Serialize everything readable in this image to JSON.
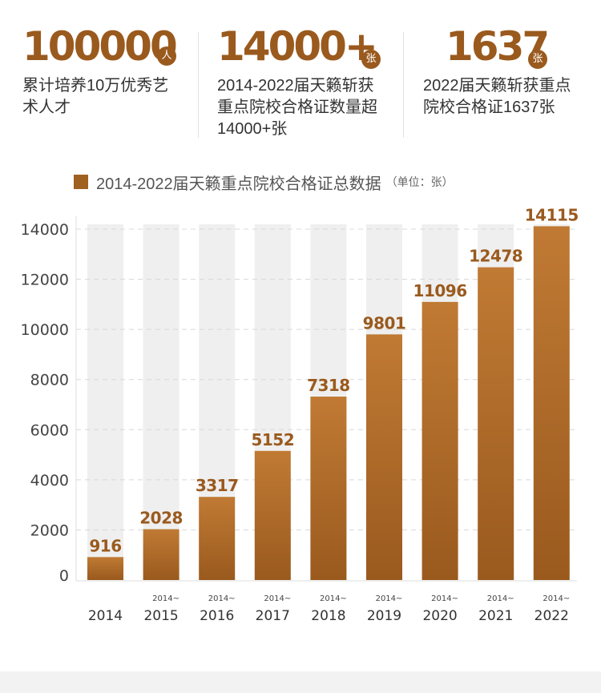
{
  "stats": [
    {
      "value": "100000",
      "badge": "人",
      "desc_lines": [
        "累计培养10万优秀艺",
        "术人才"
      ]
    },
    {
      "value": "14000+",
      "badge": "张",
      "desc_lines": [
        "2014-2022届天籁斩获",
        "重点院校合格证数量超",
        "14000+张"
      ]
    },
    {
      "value": "1637",
      "badge": "张",
      "desc_lines": [
        "2022届天籁斩获重点",
        "院校合格证1637张"
      ]
    }
  ],
  "colors": {
    "accent": "#9a5a1e",
    "bar_top": "#c07a34",
    "bar_bottom": "#9a5a1e",
    "bar_bg": "#efefef"
  },
  "chart_data": {
    "type": "bar",
    "title": "2014-2022届天籁重点院校合格证总数据",
    "unit_note": "（单位：张）",
    "categories": [
      "2014",
      "2015",
      "2016",
      "2017",
      "2018",
      "2019",
      "2020",
      "2021",
      "2022"
    ],
    "category_prefixes": [
      "",
      "2014~",
      "2014~",
      "2014~",
      "2014~",
      "2014~",
      "2014~",
      "2014~",
      "2014~"
    ],
    "values": [
      916,
      2028,
      3317,
      5152,
      7318,
      9801,
      11096,
      12478,
      14115
    ],
    "yticks": [
      0,
      2000,
      4000,
      6000,
      8000,
      10000,
      12000,
      14000
    ],
    "ylim": [
      0,
      14000
    ],
    "grid": true,
    "legend": "top-left"
  }
}
